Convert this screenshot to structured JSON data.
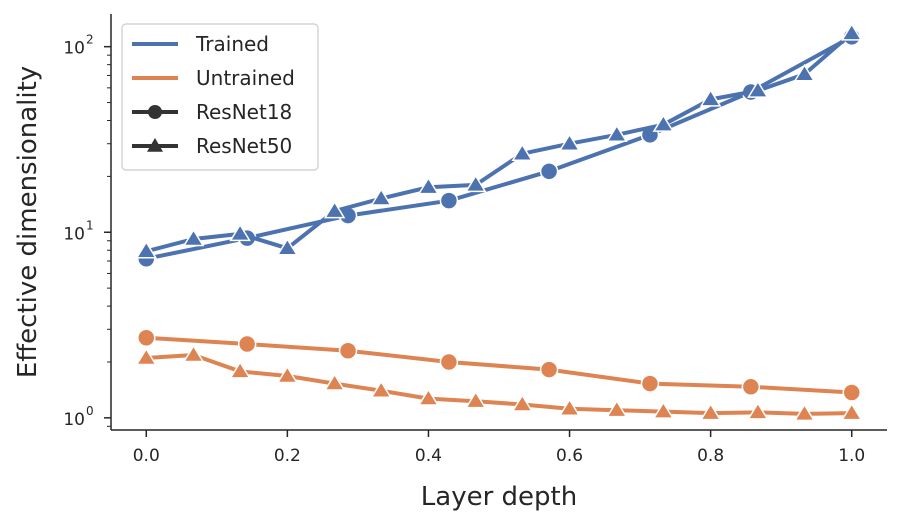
{
  "chart_data": {
    "type": "line",
    "xlabel": "Layer depth",
    "ylabel": "Effective dimensionality",
    "xlim": [
      -0.05,
      1.05
    ],
    "ylim": [
      0.86,
      150
    ],
    "yscale": "log",
    "xticks": [
      0.0,
      0.2,
      0.4,
      0.6,
      0.8,
      1.0
    ],
    "xtick_labels": [
      "0.0",
      "0.2",
      "0.4",
      "0.6",
      "0.8",
      "1.0"
    ],
    "yticks": [
      1,
      10,
      100
    ],
    "ytick_labels": [
      "10",
      "10",
      "10"
    ],
    "ytick_exponents": [
      "0",
      "1",
      "2"
    ],
    "grid": false,
    "legend_position": "top-left",
    "legend": [
      {
        "label": "Trained",
        "kind": "line",
        "color": "#4c72b0"
      },
      {
        "label": "Untrained",
        "kind": "line",
        "color": "#dd8452"
      },
      {
        "label": "ResNet18",
        "kind": "marker",
        "marker": "circle",
        "color": "#333333"
      },
      {
        "label": "ResNet50",
        "kind": "marker",
        "marker": "triangle",
        "color": "#333333"
      }
    ],
    "series": [
      {
        "color": "#4c72b0",
        "marker": "circle",
        "x": [
          0.0,
          0.143,
          0.286,
          0.429,
          0.571,
          0.714,
          0.857,
          1.0
        ],
        "y": [
          7.2,
          9.3,
          12.3,
          14.8,
          21.3,
          33.5,
          57.0,
          113
        ]
      },
      {
        "color": "#4c72b0",
        "marker": "triangle",
        "x": [
          0.0,
          0.067,
          0.133,
          0.2,
          0.267,
          0.333,
          0.4,
          0.467,
          0.533,
          0.6,
          0.667,
          0.733,
          0.8,
          0.867,
          0.933,
          1.0
        ],
        "y": [
          7.9,
          9.2,
          9.8,
          8.2,
          13.0,
          15.2,
          17.5,
          18.0,
          26.5,
          30.0,
          33.5,
          38.0,
          52.0,
          58.0,
          71.0,
          118
        ]
      },
      {
        "color": "#dd8452",
        "marker": "circle",
        "x": [
          0.0,
          0.143,
          0.286,
          0.429,
          0.571,
          0.714,
          0.857,
          1.0
        ],
        "y": [
          2.7,
          2.5,
          2.3,
          2.0,
          1.82,
          1.53,
          1.47,
          1.37
        ]
      },
      {
        "color": "#dd8452",
        "marker": "triangle",
        "x": [
          0.0,
          0.067,
          0.133,
          0.2,
          0.267,
          0.333,
          0.4,
          0.467,
          0.533,
          0.6,
          0.667,
          0.733,
          0.8,
          0.867,
          0.933,
          1.0
        ],
        "y": [
          2.1,
          2.18,
          1.78,
          1.68,
          1.53,
          1.4,
          1.27,
          1.23,
          1.18,
          1.12,
          1.1,
          1.08,
          1.06,
          1.07,
          1.05,
          1.06
        ]
      }
    ]
  }
}
